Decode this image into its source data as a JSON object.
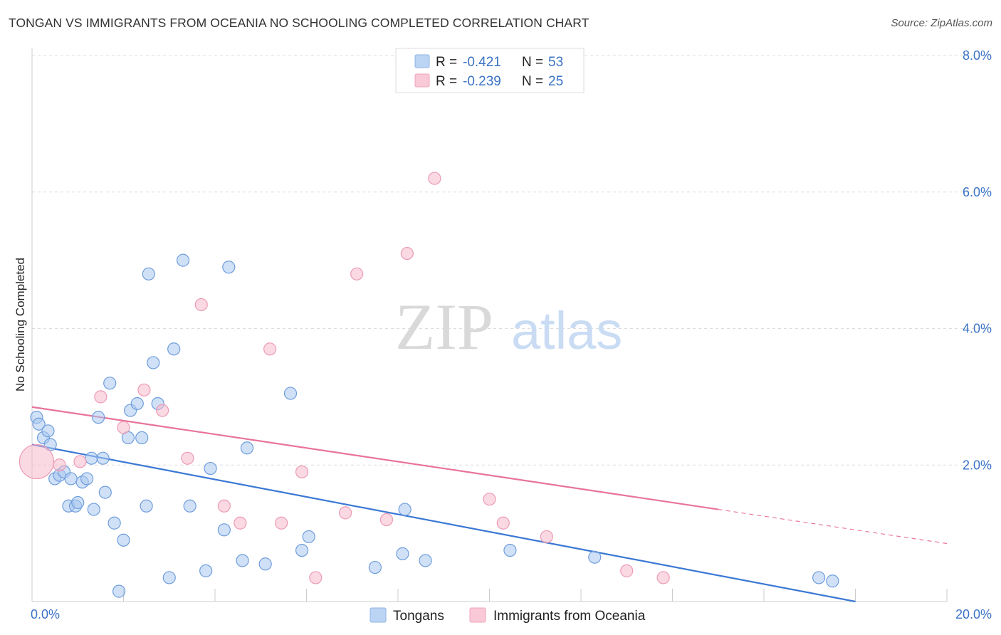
{
  "header": {
    "title": "TONGAN VS IMMIGRANTS FROM OCEANIA NO SCHOOLING COMPLETED CORRELATION CHART",
    "source": "Source: ZipAtlas.com"
  },
  "watermark": {
    "zip": "ZIP",
    "atlas": "atlas"
  },
  "stats_legend": [
    {
      "r_label": "R =",
      "r_value": "-0.421",
      "n_label": "N =",
      "n_value": "53",
      "color": "#a9c8f0"
    },
    {
      "r_label": "R =",
      "r_value": "-0.239",
      "n_label": "N =",
      "n_value": "25",
      "color": "#f7b9cc"
    }
  ],
  "chart_data": {
    "type": "scatter",
    "title": "TONGAN VS IMMIGRANTS FROM OCEANIA NO SCHOOLING COMPLETED CORRELATION CHART",
    "xlabel": "",
    "ylabel": "No Schooling Completed",
    "xlim": [
      0,
      20
    ],
    "ylim": [
      0,
      8
    ],
    "x_tick_labels": [
      "0.0%",
      "20.0%"
    ],
    "y_tick_labels": [
      "2.0%",
      "4.0%",
      "6.0%",
      "8.0%"
    ],
    "y_ticks": [
      2,
      4,
      6,
      8
    ],
    "grid": true,
    "legend_position": "bottom",
    "series": [
      {
        "name": "Tongans",
        "color": "#3b78d4",
        "fill": "#a9c8f0",
        "trend": {
          "x": [
            0,
            18
          ],
          "y": [
            2.3,
            0.0
          ]
        },
        "points": [
          {
            "x": 0.1,
            "y": 2.7
          },
          {
            "x": 0.15,
            "y": 2.6
          },
          {
            "x": 0.25,
            "y": 2.4
          },
          {
            "x": 0.35,
            "y": 2.5
          },
          {
            "x": 0.4,
            "y": 2.3
          },
          {
            "x": 0.5,
            "y": 1.8
          },
          {
            "x": 0.6,
            "y": 1.85
          },
          {
            "x": 0.7,
            "y": 1.9
          },
          {
            "x": 0.8,
            "y": 1.4
          },
          {
            "x": 0.85,
            "y": 1.8
          },
          {
            "x": 0.95,
            "y": 1.4
          },
          {
            "x": 1.0,
            "y": 1.45
          },
          {
            "x": 1.1,
            "y": 1.75
          },
          {
            "x": 1.2,
            "y": 1.8
          },
          {
            "x": 1.3,
            "y": 2.1
          },
          {
            "x": 1.35,
            "y": 1.35
          },
          {
            "x": 1.45,
            "y": 2.7
          },
          {
            "x": 1.55,
            "y": 2.1
          },
          {
            "x": 1.6,
            "y": 1.6
          },
          {
            "x": 1.7,
            "y": 3.2
          },
          {
            "x": 1.8,
            "y": 1.15
          },
          {
            "x": 1.9,
            "y": 0.15
          },
          {
            "x": 2.0,
            "y": 0.9
          },
          {
            "x": 2.1,
            "y": 2.4
          },
          {
            "x": 2.15,
            "y": 2.8
          },
          {
            "x": 2.3,
            "y": 2.9
          },
          {
            "x": 2.4,
            "y": 2.4
          },
          {
            "x": 2.5,
            "y": 1.4
          },
          {
            "x": 2.55,
            "y": 4.8
          },
          {
            "x": 2.65,
            "y": 3.5
          },
          {
            "x": 2.75,
            "y": 2.9
          },
          {
            "x": 3.0,
            "y": 0.35
          },
          {
            "x": 3.1,
            "y": 3.7
          },
          {
            "x": 3.3,
            "y": 5.0
          },
          {
            "x": 3.45,
            "y": 1.4
          },
          {
            "x": 3.8,
            "y": 0.45
          },
          {
            "x": 3.9,
            "y": 1.95
          },
          {
            "x": 4.2,
            "y": 1.05
          },
          {
            "x": 4.3,
            "y": 4.9
          },
          {
            "x": 4.6,
            "y": 0.6
          },
          {
            "x": 4.7,
            "y": 2.25
          },
          {
            "x": 5.1,
            "y": 0.55
          },
          {
            "x": 5.65,
            "y": 3.05
          },
          {
            "x": 5.9,
            "y": 0.75
          },
          {
            "x": 6.05,
            "y": 0.95
          },
          {
            "x": 7.5,
            "y": 0.5
          },
          {
            "x": 8.1,
            "y": 0.7
          },
          {
            "x": 8.15,
            "y": 1.35
          },
          {
            "x": 8.6,
            "y": 0.6
          },
          {
            "x": 10.45,
            "y": 0.75
          },
          {
            "x": 12.3,
            "y": 0.65
          },
          {
            "x": 17.2,
            "y": 0.35
          },
          {
            "x": 17.5,
            "y": 0.3
          }
        ]
      },
      {
        "name": "Immigrants from Oceania",
        "color": "#e8739b",
        "fill": "#f7b9cc",
        "trend": {
          "x": [
            0,
            15
          ],
          "y": [
            2.85,
            1.35
          ]
        },
        "trend_dashed": {
          "x": [
            15,
            20
          ],
          "y": [
            1.35,
            0.85
          ]
        },
        "points": [
          {
            "x": 0.1,
            "y": 2.05,
            "big": true
          },
          {
            "x": 0.6,
            "y": 2.0
          },
          {
            "x": 1.05,
            "y": 2.05
          },
          {
            "x": 1.5,
            "y": 3.0
          },
          {
            "x": 2.0,
            "y": 2.55
          },
          {
            "x": 2.45,
            "y": 3.1
          },
          {
            "x": 2.85,
            "y": 2.8
          },
          {
            "x": 3.4,
            "y": 2.1
          },
          {
            "x": 3.7,
            "y": 4.35
          },
          {
            "x": 4.2,
            "y": 1.4
          },
          {
            "x": 4.55,
            "y": 1.15
          },
          {
            "x": 5.2,
            "y": 3.7
          },
          {
            "x": 5.45,
            "y": 1.15
          },
          {
            "x": 5.9,
            "y": 1.9
          },
          {
            "x": 6.2,
            "y": 0.35
          },
          {
            "x": 6.85,
            "y": 1.3
          },
          {
            "x": 7.1,
            "y": 4.8
          },
          {
            "x": 7.75,
            "y": 1.2
          },
          {
            "x": 8.2,
            "y": 5.1
          },
          {
            "x": 8.8,
            "y": 6.2
          },
          {
            "x": 10.0,
            "y": 1.5
          },
          {
            "x": 10.3,
            "y": 1.15
          },
          {
            "x": 11.25,
            "y": 0.95
          },
          {
            "x": 13.0,
            "y": 0.45
          },
          {
            "x": 13.8,
            "y": 0.35
          }
        ]
      }
    ]
  },
  "bottom_legend": [
    {
      "label": "Tongans",
      "color": "#a9c8f0",
      "stroke": "#7ea9e0"
    },
    {
      "label": "Immigrants from Oceania",
      "color": "#f7c6d6",
      "stroke": "#ef9bb6"
    }
  ]
}
